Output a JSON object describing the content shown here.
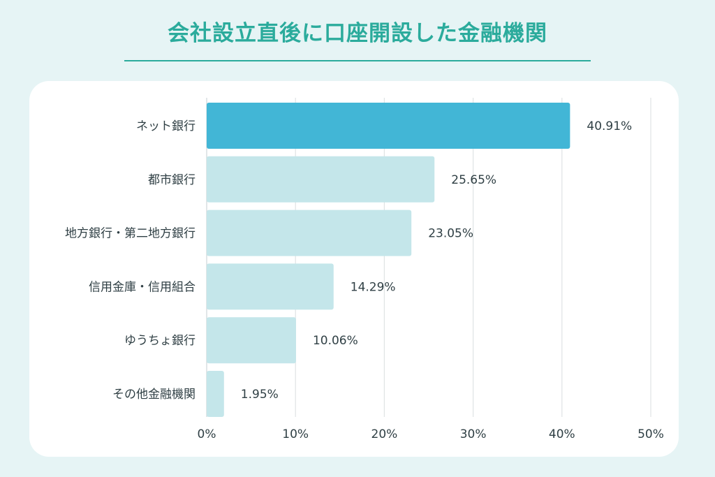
{
  "title": "会社設立直後に口座開設した金融機関",
  "chart_data": {
    "type": "bar",
    "orientation": "horizontal",
    "title": "会社設立直後に口座開設した金融機関",
    "categories": [
      "ネット銀行",
      "都市銀行",
      "地方銀行・第二地方銀行",
      "信用金庫・信用組合",
      "ゆうちょ銀行",
      "その他金融機関"
    ],
    "values": [
      40.91,
      25.65,
      23.05,
      14.29,
      10.06,
      1.95
    ],
    "value_labels": [
      "40.91%",
      "25.65%",
      "23.05%",
      "14.29%",
      "10.06%",
      "1.95%"
    ],
    "xlim": [
      0,
      50
    ],
    "xticks": [
      0,
      10,
      20,
      30,
      40,
      50
    ],
    "xtick_labels": [
      "0%",
      "10%",
      "20%",
      "30%",
      "40%",
      "50%"
    ],
    "xlabel": "",
    "ylabel": "",
    "grid": true,
    "highlight_color": "#42b6d6",
    "bar_color": "#c4e6ea",
    "grid_color": "#dfe3e4"
  }
}
